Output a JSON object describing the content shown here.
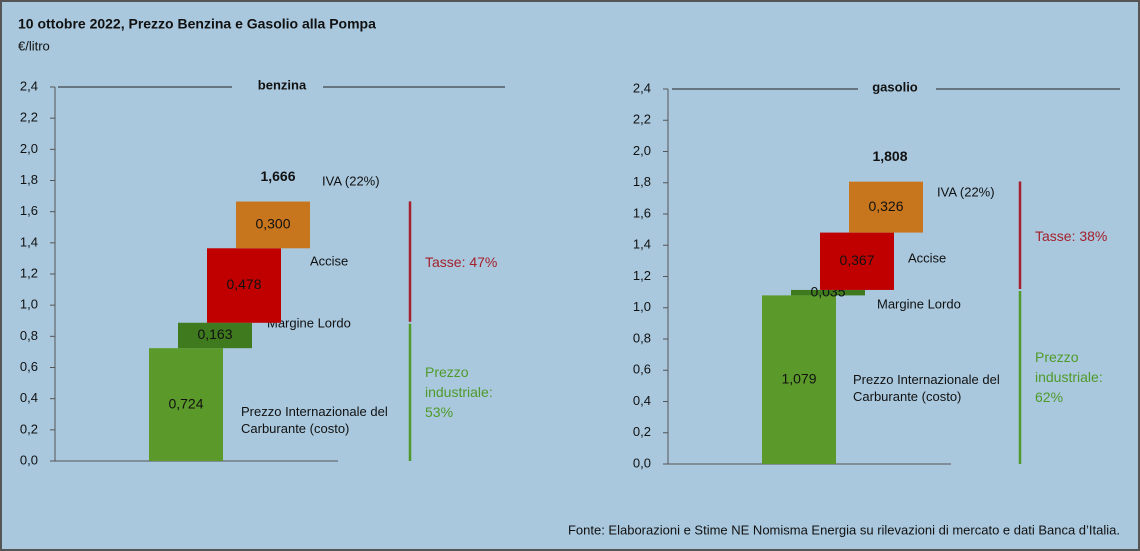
{
  "title": "10 ottobre 2022, Prezzo Benzina e Gasolio alla Pompa",
  "unit": "€/litro",
  "source": "Fonte: Elaborazioni e Stime NE Nomisma Energia su rilevazioni di mercato e dati Banca d’Italia.",
  "chart_data": [
    {
      "type": "waterfall",
      "title": "benzina",
      "categories": [
        "Prezzo Internazionale del Carburante (costo)",
        "Margine Lordo",
        "Accise",
        "IVA (22%)"
      ],
      "values": [
        0.724,
        0.163,
        0.478,
        0.3
      ],
      "value_labels": [
        "0,724",
        "0,163",
        "0,478",
        "0,300"
      ],
      "colors": [
        "#5b9a2a",
        "#3f7a1f",
        "#c00000",
        "#c8761e"
      ],
      "total": 1.666,
      "total_label": "1,666",
      "annotations": [
        {
          "text": "Tasse: 47%",
          "color": "#a3202c"
        },
        {
          "text": "Prezzo industriale: 53%",
          "color": "#4f9a2a"
        }
      ],
      "ylim": [
        0,
        2.4
      ],
      "yticks": [
        {
          "value": 0,
          "label": "0,0"
        },
        {
          "value": 0.2,
          "label": "0,2"
        },
        {
          "value": 0.4,
          "label": "0,4"
        },
        {
          "value": 0.6,
          "label": "0,6"
        },
        {
          "value": 0.8,
          "label": "0,8"
        },
        {
          "value": 1.0,
          "label": "1,0"
        },
        {
          "value": 1.2,
          "label": "1,2"
        },
        {
          "value": 1.4,
          "label": "1,4"
        },
        {
          "value": 1.6,
          "label": "1,6"
        },
        {
          "value": 1.8,
          "label": "1,8"
        },
        {
          "value": 2.0,
          "label": "2,0"
        },
        {
          "value": 2.2,
          "label": "2,2"
        },
        {
          "value": 2.4,
          "label": "2,4"
        }
      ]
    },
    {
      "type": "waterfall",
      "title": "gasolio",
      "categories": [
        "Prezzo Internazionale del Carburante (costo)",
        "Margine Lordo",
        "Accise",
        "IVA (22%)"
      ],
      "values": [
        1.079,
        0.035,
        0.367,
        0.326
      ],
      "value_labels": [
        "1,079",
        "0,035",
        "0,367",
        "0,326"
      ],
      "colors": [
        "#5b9a2a",
        "#3f7a1f",
        "#c00000",
        "#c8761e"
      ],
      "total": 1.808,
      "total_label": "1,808",
      "annotations": [
        {
          "text": "Tasse: 38%",
          "color": "#a3202c"
        },
        {
          "text": "Prezzo industriale: 62%",
          "color": "#4f9a2a"
        }
      ],
      "ylim": [
        0,
        2.4
      ],
      "yticks": [
        {
          "value": 0,
          "label": "0,0"
        },
        {
          "value": 0.2,
          "label": "0,2"
        },
        {
          "value": 0.4,
          "label": "0,4"
        },
        {
          "value": 0.6,
          "label": "0,6"
        },
        {
          "value": 0.8,
          "label": "0,8"
        },
        {
          "value": 1.0,
          "label": "1,0"
        },
        {
          "value": 1.2,
          "label": "1,2"
        },
        {
          "value": 1.4,
          "label": "1,4"
        },
        {
          "value": 1.6,
          "label": "1,6"
        },
        {
          "value": 1.8,
          "label": "1,8"
        },
        {
          "value": 2.0,
          "label": "2,0"
        },
        {
          "value": 2.2,
          "label": "2,2"
        },
        {
          "value": 2.4,
          "label": "2,4"
        }
      ]
    }
  ]
}
